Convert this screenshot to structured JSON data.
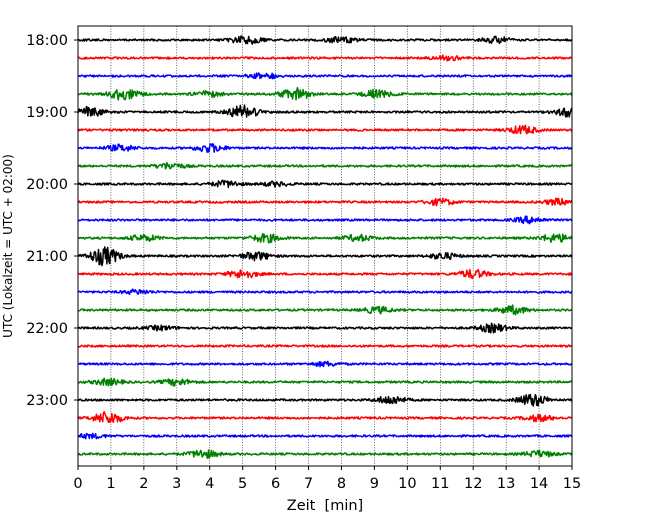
{
  "chart_data": {
    "type": "line",
    "title": "",
    "xlabel": "Zeit  [min]",
    "ylabel": "UTC (Lokalzeit = UTC + 02:00)",
    "xlim": [
      0,
      15
    ],
    "x_ticks": [
      "0",
      "1",
      "2",
      "3",
      "4",
      "5",
      "6",
      "7",
      "8",
      "9",
      "10",
      "11",
      "12",
      "13",
      "14",
      "15"
    ],
    "y_ticks": [
      {
        "label": "18:00",
        "row": 0
      },
      {
        "label": "19:00",
        "row": 4
      },
      {
        "label": "20:00",
        "row": 8
      },
      {
        "label": "21:00",
        "row": 12
      },
      {
        "label": "22:00",
        "row": 16
      },
      {
        "label": "23:00",
        "row": 20
      }
    ],
    "grid": "vertical dotted at each minute",
    "colors": [
      "#000000",
      "#ff0000",
      "#0000ff",
      "#008000"
    ],
    "series": [
      {
        "start": "18:00",
        "color": "#000000",
        "events": [
          {
            "t": 5.1,
            "a": 4
          },
          {
            "t": 8.0,
            "a": 3
          },
          {
            "t": 12.7,
            "a": 3
          }
        ]
      },
      {
        "start": "18:15",
        "color": "#ff0000",
        "events": [
          {
            "t": 11.2,
            "a": 2
          }
        ]
      },
      {
        "start": "18:30",
        "color": "#0000ff",
        "events": [
          {
            "t": 5.6,
            "a": 3
          }
        ]
      },
      {
        "start": "18:45",
        "color": "#008000",
        "events": [
          {
            "t": 1.4,
            "a": 6
          },
          {
            "t": 4.0,
            "a": 3
          },
          {
            "t": 6.6,
            "a": 6
          },
          {
            "t": 9.1,
            "a": 4
          }
        ]
      },
      {
        "start": "19:00",
        "color": "#000000",
        "events": [
          {
            "t": 0.3,
            "a": 5
          },
          {
            "t": 5.0,
            "a": 7
          },
          {
            "t": 14.9,
            "a": 4
          }
        ]
      },
      {
        "start": "19:15",
        "color": "#ff0000",
        "events": [
          {
            "t": 13.5,
            "a": 4
          }
        ]
      },
      {
        "start": "19:30",
        "color": "#0000ff",
        "events": [
          {
            "t": 1.3,
            "a": 3
          },
          {
            "t": 4.0,
            "a": 4
          }
        ]
      },
      {
        "start": "19:45",
        "color": "#008000",
        "events": [
          {
            "t": 2.8,
            "a": 3
          }
        ]
      },
      {
        "start": "20:00",
        "color": "#000000",
        "events": [
          {
            "t": 4.5,
            "a": 3
          },
          {
            "t": 6.0,
            "a": 2
          }
        ]
      },
      {
        "start": "20:15",
        "color": "#ff0000",
        "events": [
          {
            "t": 11.0,
            "a": 3
          },
          {
            "t": 14.6,
            "a": 3
          }
        ]
      },
      {
        "start": "20:30",
        "color": "#0000ff",
        "events": [
          {
            "t": 13.7,
            "a": 3
          }
        ]
      },
      {
        "start": "20:45",
        "color": "#008000",
        "events": [
          {
            "t": 2.0,
            "a": 3
          },
          {
            "t": 5.7,
            "a": 4
          },
          {
            "t": 8.5,
            "a": 3
          },
          {
            "t": 14.5,
            "a": 4
          }
        ]
      },
      {
        "start": "21:00",
        "color": "#000000",
        "events": [
          {
            "t": 0.8,
            "a": 9
          },
          {
            "t": 5.4,
            "a": 4
          },
          {
            "t": 11.1,
            "a": 3
          }
        ]
      },
      {
        "start": "21:15",
        "color": "#ff0000",
        "events": [
          {
            "t": 5.0,
            "a": 4
          },
          {
            "t": 12.0,
            "a": 4
          }
        ]
      },
      {
        "start": "21:30",
        "color": "#0000ff",
        "events": [
          {
            "t": 1.8,
            "a": 2
          }
        ]
      },
      {
        "start": "21:45",
        "color": "#008000",
        "events": [
          {
            "t": 9.1,
            "a": 3
          },
          {
            "t": 13.2,
            "a": 4
          }
        ]
      },
      {
        "start": "22:00",
        "color": "#000000",
        "events": [
          {
            "t": 2.5,
            "a": 2
          },
          {
            "t": 12.6,
            "a": 4
          }
        ]
      },
      {
        "start": "22:15",
        "color": "#ff0000",
        "events": []
      },
      {
        "start": "22:30",
        "color": "#0000ff",
        "events": [
          {
            "t": 7.5,
            "a": 2
          }
        ]
      },
      {
        "start": "22:45",
        "color": "#008000",
        "events": [
          {
            "t": 0.9,
            "a": 3
          },
          {
            "t": 3.0,
            "a": 3
          }
        ]
      },
      {
        "start": "23:00",
        "color": "#000000",
        "events": [
          {
            "t": 9.5,
            "a": 4
          },
          {
            "t": 13.8,
            "a": 6
          }
        ]
      },
      {
        "start": "23:15",
        "color": "#ff0000",
        "events": [
          {
            "t": 0.9,
            "a": 6
          },
          {
            "t": 14.0,
            "a": 3
          }
        ]
      },
      {
        "start": "23:30",
        "color": "#0000ff",
        "events": [
          {
            "t": 0.4,
            "a": 2
          }
        ]
      },
      {
        "start": "23:45",
        "color": "#008000",
        "events": [
          {
            "t": 3.8,
            "a": 4
          },
          {
            "t": 14.0,
            "a": 3
          }
        ]
      }
    ]
  }
}
